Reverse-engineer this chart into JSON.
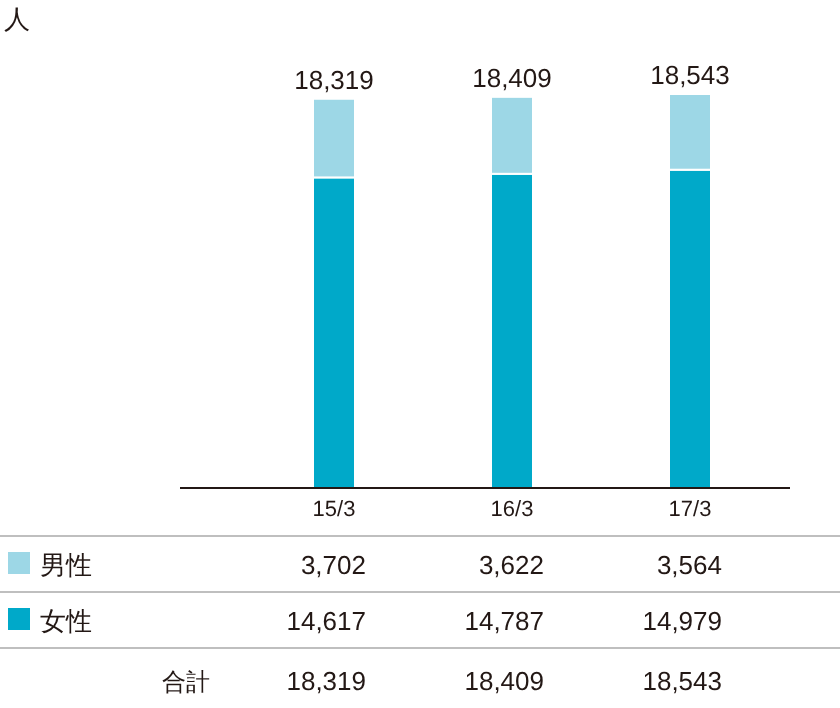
{
  "chart_data": {
    "type": "bar",
    "categories": [
      "15/3",
      "16/3",
      "17/3"
    ],
    "stacked": true,
    "legend": "bottom left",
    "series": [
      {
        "name": "女性",
        "color": "#00a9c9",
        "values": [
          14617,
          14787,
          14979
        ],
        "value_labels": [
          "14,617",
          "14,787",
          "14,979"
        ]
      },
      {
        "name": "男性",
        "color": "#9dd7e6",
        "values": [
          3702,
          3622,
          3564
        ],
        "value_labels": [
          "3,702",
          "3,622",
          "3,564"
        ]
      }
    ],
    "totals": [
      "18,319",
      "18,409",
      "18,543"
    ],
    "annotations": [
      "人",
      "合計"
    ]
  }
}
